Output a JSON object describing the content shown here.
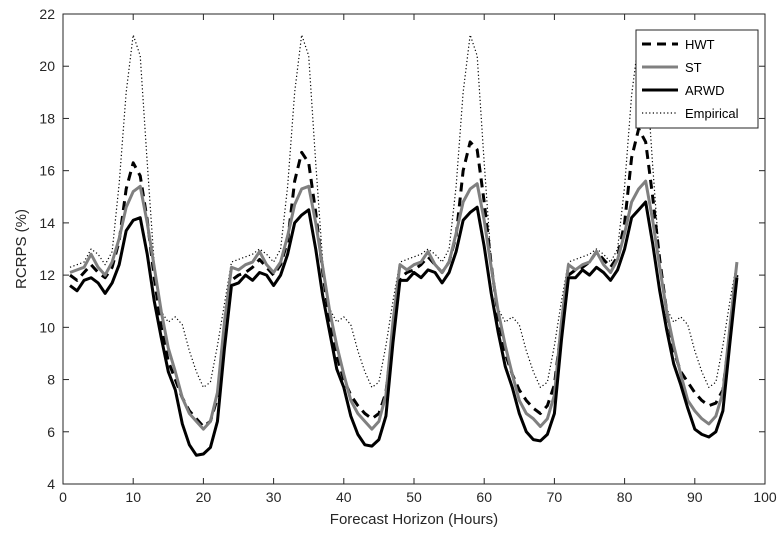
{
  "chart_data": {
    "type": "line",
    "title": "",
    "xlabel": "Forecast Horizon (Hours)",
    "ylabel": "RCRPS (%)",
    "xlim": [
      0,
      100
    ],
    "ylim": [
      4,
      22
    ],
    "xticks": [
      0,
      10,
      20,
      30,
      40,
      50,
      60,
      70,
      80,
      90,
      100
    ],
    "yticks": [
      4,
      6,
      8,
      10,
      12,
      14,
      16,
      18,
      20,
      22
    ],
    "grid": false,
    "legend_position": "top-right",
    "x": [
      1,
      2,
      3,
      4,
      5,
      6,
      7,
      8,
      9,
      10,
      11,
      12,
      13,
      14,
      15,
      16,
      17,
      18,
      19,
      20,
      21,
      22,
      23,
      24,
      25,
      26,
      27,
      28,
      29,
      30,
      31,
      32,
      33,
      34,
      35,
      36,
      37,
      38,
      39,
      40,
      41,
      42,
      43,
      44,
      45,
      46,
      47,
      48,
      49,
      50,
      51,
      52,
      53,
      54,
      55,
      56,
      57,
      58,
      59,
      60,
      61,
      62,
      63,
      64,
      65,
      66,
      67,
      68,
      69,
      70,
      71,
      72,
      73,
      74,
      75,
      76,
      77,
      78,
      79,
      80,
      81,
      82,
      83,
      84,
      85,
      86,
      87,
      88,
      89,
      90,
      91,
      92,
      93,
      94,
      95,
      96
    ],
    "series": [
      {
        "name": "HWT",
        "color": "#000000",
        "style": "dashed",
        "values": [
          12.0,
          11.8,
          12.1,
          12.4,
          12.1,
          11.9,
          12.3,
          13.3,
          15.3,
          16.3,
          15.8,
          14.1,
          11.9,
          10.0,
          8.7,
          8.0,
          7.3,
          6.8,
          6.5,
          6.2,
          6.4,
          7.3,
          9.8,
          11.8,
          12.0,
          12.1,
          12.3,
          12.6,
          12.3,
          12.0,
          12.4,
          13.3,
          15.6,
          16.7,
          16.3,
          14.4,
          12.1,
          10.2,
          8.9,
          8.0,
          7.4,
          7.0,
          6.7,
          6.5,
          6.7,
          7.5,
          9.8,
          11.9,
          12.1,
          12.2,
          12.4,
          12.7,
          12.4,
          12.1,
          12.5,
          13.5,
          16.0,
          17.1,
          16.8,
          14.8,
          12.4,
          10.4,
          9.0,
          8.2,
          7.6,
          7.2,
          6.9,
          6.7,
          7.0,
          7.8,
          10.0,
          12.0,
          12.2,
          12.3,
          12.5,
          12.9,
          12.6,
          12.3,
          12.7,
          14.0,
          16.5,
          17.6,
          17.1,
          15.0,
          12.6,
          10.6,
          9.1,
          8.3,
          7.9,
          7.5,
          7.2,
          7.0,
          7.1,
          7.6,
          9.8,
          12.0
        ]
      },
      {
        "name": "ST",
        "color": "#808080",
        "style": "solid",
        "values": [
          12.1,
          12.2,
          12.3,
          12.8,
          12.3,
          12.0,
          12.5,
          13.4,
          14.6,
          15.2,
          15.4,
          14.0,
          12.3,
          10.6,
          9.2,
          8.3,
          7.3,
          6.7,
          6.4,
          6.1,
          6.4,
          7.5,
          10.2,
          12.3,
          12.2,
          12.4,
          12.5,
          12.9,
          12.4,
          12.1,
          12.5,
          13.5,
          14.7,
          15.3,
          15.4,
          14.0,
          12.3,
          10.6,
          9.3,
          8.2,
          7.2,
          6.7,
          6.4,
          6.1,
          6.4,
          7.4,
          10.2,
          12.4,
          12.2,
          12.4,
          12.5,
          12.9,
          12.4,
          12.1,
          12.5,
          13.6,
          14.8,
          15.3,
          15.5,
          14.1,
          12.3,
          10.6,
          9.3,
          8.2,
          7.2,
          6.7,
          6.5,
          6.2,
          6.5,
          7.4,
          10.2,
          12.4,
          12.2,
          12.4,
          12.5,
          12.9,
          12.4,
          12.1,
          12.6,
          13.6,
          14.8,
          15.3,
          15.6,
          14.1,
          12.3,
          10.6,
          9.3,
          8.2,
          7.2,
          6.8,
          6.5,
          6.3,
          6.6,
          7.5,
          10.0,
          12.5
        ]
      },
      {
        "name": "ARWD",
        "color": "#000000",
        "style": "solid-thick",
        "values": [
          11.6,
          11.4,
          11.8,
          11.9,
          11.7,
          11.3,
          11.7,
          12.4,
          13.7,
          14.1,
          14.2,
          12.8,
          11.0,
          9.6,
          8.3,
          7.6,
          6.3,
          5.5,
          5.1,
          5.15,
          5.4,
          6.4,
          9.2,
          11.6,
          11.7,
          12.0,
          11.8,
          12.1,
          12.0,
          11.6,
          12.0,
          12.8,
          14.0,
          14.3,
          14.5,
          13.0,
          11.2,
          9.8,
          8.4,
          7.7,
          6.6,
          5.9,
          5.5,
          5.45,
          5.7,
          6.6,
          9.4,
          11.8,
          11.8,
          12.1,
          11.9,
          12.2,
          12.1,
          11.7,
          12.1,
          12.9,
          14.1,
          14.4,
          14.6,
          13.1,
          11.3,
          9.8,
          8.5,
          7.7,
          6.7,
          6.0,
          5.7,
          5.65,
          5.9,
          6.7,
          9.5,
          11.9,
          11.9,
          12.2,
          12.0,
          12.3,
          12.1,
          11.8,
          12.2,
          13.0,
          14.2,
          14.5,
          14.8,
          13.2,
          11.4,
          9.9,
          8.6,
          7.8,
          6.9,
          6.1,
          5.9,
          5.8,
          6.0,
          6.8,
          9.4,
          11.9
        ]
      },
      {
        "name": "Empirical",
        "color": "#000000",
        "style": "dotted",
        "values": [
          12.3,
          12.4,
          12.5,
          13.0,
          12.8,
          12.4,
          12.9,
          15.5,
          19.0,
          21.2,
          20.4,
          16.3,
          12.4,
          10.6,
          10.2,
          10.4,
          10.1,
          9.1,
          8.3,
          7.7,
          7.9,
          9.3,
          10.9,
          12.5,
          12.6,
          12.7,
          12.8,
          13.0,
          12.8,
          12.5,
          13.0,
          15.4,
          19.0,
          21.2,
          20.4,
          16.3,
          12.5,
          10.7,
          10.2,
          10.4,
          10.1,
          9.1,
          8.3,
          7.7,
          7.9,
          9.3,
          11.0,
          12.5,
          12.6,
          12.7,
          12.8,
          13.0,
          12.8,
          12.5,
          13.0,
          15.4,
          19.0,
          21.2,
          20.4,
          16.3,
          12.5,
          10.7,
          10.2,
          10.4,
          10.1,
          9.1,
          8.3,
          7.7,
          7.9,
          9.3,
          11.0,
          12.5,
          12.6,
          12.7,
          12.8,
          13.0,
          12.8,
          12.5,
          13.0,
          15.4,
          18.9,
          21.0,
          20.2,
          16.2,
          12.5,
          10.7,
          10.2,
          10.4,
          10.1,
          9.1,
          8.3,
          7.7,
          7.9,
          9.3,
          11.0,
          12.5
        ]
      }
    ]
  }
}
